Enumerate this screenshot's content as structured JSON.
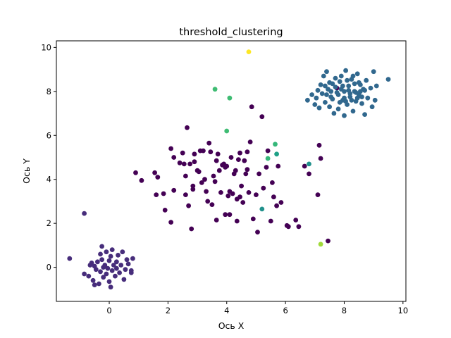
{
  "chart_data": {
    "type": "scatter",
    "title": "threshold_clustering",
    "xlabel": "Ось X",
    "ylabel": "Ось Y",
    "xlim": [
      -1.8,
      10.1
    ],
    "ylim": [
      -1.55,
      10.3
    ],
    "xticks": [
      0,
      2,
      4,
      6,
      8,
      10
    ],
    "yticks": [
      0,
      2,
      4,
      6,
      8,
      10
    ],
    "grid": false,
    "colors": {
      "cluster_a": "#440154",
      "cluster_b": "#472d7b",
      "cluster_c": "#31688e",
      "outlier_teal": "#21918c",
      "outlier_teal2": "#1fa187",
      "outlier_green": "#35b779",
      "outlier_green2": "#3fbc73",
      "outlier_lime": "#a0da39",
      "outlier_yellow": "#fde725"
    },
    "series": [
      {
        "color_key": "cluster_a",
        "points": [
          [
            0.9,
            4.3
          ],
          [
            1.1,
            3.95
          ],
          [
            1.55,
            4.3
          ],
          [
            1.65,
            4.1
          ],
          [
            1.6,
            3.3
          ],
          [
            1.85,
            3.35
          ],
          [
            1.9,
            2.6
          ],
          [
            2.1,
            5.4
          ],
          [
            2.2,
            3.5
          ],
          [
            2.1,
            2.05
          ],
          [
            2.2,
            5.0
          ],
          [
            2.4,
            4.75
          ],
          [
            2.5,
            5.2
          ],
          [
            2.55,
            4.7
          ],
          [
            2.6,
            4.15
          ],
          [
            2.6,
            3.3
          ],
          [
            2.65,
            6.35
          ],
          [
            2.7,
            2.8
          ],
          [
            2.75,
            4.7
          ],
          [
            2.8,
            1.75
          ],
          [
            2.85,
            3.7
          ],
          [
            2.85,
            3.55
          ],
          [
            2.9,
            4.8
          ],
          [
            2.9,
            5.15
          ],
          [
            3.0,
            4.4
          ],
          [
            3.05,
            4.35
          ],
          [
            3.1,
            5.3
          ],
          [
            3.15,
            3.85
          ],
          [
            3.2,
            5.3
          ],
          [
            3.25,
            4.0
          ],
          [
            3.3,
            3.45
          ],
          [
            3.35,
            3.0
          ],
          [
            3.4,
            5.65
          ],
          [
            3.45,
            5.25
          ],
          [
            3.5,
            2.85
          ],
          [
            3.55,
            4.15
          ],
          [
            3.6,
            3.9
          ],
          [
            3.65,
            4.85
          ],
          [
            3.65,
            2.15
          ],
          [
            3.7,
            5.15
          ],
          [
            3.75,
            4.4
          ],
          [
            3.8,
            3.4
          ],
          [
            3.85,
            4.65
          ],
          [
            3.9,
            4.7
          ],
          [
            3.95,
            4.55
          ],
          [
            3.95,
            2.4
          ],
          [
            4.0,
            4.6
          ],
          [
            4.05,
            3.25
          ],
          [
            4.1,
            3.45
          ],
          [
            4.1,
            2.4
          ],
          [
            4.15,
            5.0
          ],
          [
            4.2,
            3.35
          ],
          [
            4.25,
            4.25
          ],
          [
            4.3,
            4.4
          ],
          [
            4.35,
            3.1
          ],
          [
            4.35,
            2.1
          ],
          [
            4.4,
            4.9
          ],
          [
            4.45,
            3.2
          ],
          [
            4.45,
            5.2
          ],
          [
            4.5,
            3.7
          ],
          [
            4.55,
            2.95
          ],
          [
            4.6,
            4.85
          ],
          [
            4.65,
            4.25
          ],
          [
            4.7,
            5.25
          ],
          [
            4.7,
            4.45
          ],
          [
            4.75,
            3.4
          ],
          [
            4.8,
            5.7
          ],
          [
            4.85,
            7.3
          ],
          [
            4.9,
            2.2
          ],
          [
            5.0,
            3.3
          ],
          [
            5.05,
            1.6
          ],
          [
            5.1,
            4.25
          ],
          [
            5.2,
            6.85
          ],
          [
            5.25,
            3.6
          ],
          [
            5.35,
            4.55
          ],
          [
            5.4,
            5.3
          ],
          [
            5.5,
            2.1
          ],
          [
            5.55,
            3.85
          ],
          [
            5.6,
            3.2
          ],
          [
            5.7,
            2.8
          ],
          [
            5.75,
            4.6
          ],
          [
            5.85,
            2.95
          ],
          [
            6.05,
            1.9
          ],
          [
            6.1,
            1.85
          ],
          [
            6.35,
            2.15
          ],
          [
            6.45,
            1.85
          ],
          [
            6.65,
            4.6
          ],
          [
            6.8,
            4.25
          ],
          [
            7.15,
            5.55
          ],
          [
            7.2,
            4.95
          ],
          [
            7.45,
            1.2
          ],
          [
            7.75,
            8.15
          ],
          [
            7.1,
            3.3
          ]
        ]
      },
      {
        "color_key": "cluster_b",
        "points": [
          [
            -0.85,
            2.45
          ],
          [
            -1.35,
            0.4
          ],
          [
            -0.85,
            -0.3
          ],
          [
            -0.7,
            -0.4
          ],
          [
            -0.65,
            0.1
          ],
          [
            -0.6,
            0.2
          ],
          [
            -0.55,
            -0.6
          ],
          [
            -0.5,
            -0.8
          ],
          [
            -0.45,
            -0.1
          ],
          [
            -0.4,
            0.25
          ],
          [
            -0.35,
            -0.75
          ],
          [
            -0.3,
            -0.2
          ],
          [
            -0.3,
            0.6
          ],
          [
            -0.25,
            0.35
          ],
          [
            -0.2,
            0.0
          ],
          [
            -0.2,
            -0.45
          ],
          [
            -0.15,
            0.1
          ],
          [
            -0.1,
            -0.3
          ],
          [
            -0.1,
            0.7
          ],
          [
            -0.05,
            -0.05
          ],
          [
            0.0,
            0.3
          ],
          [
            0.0,
            -0.65
          ],
          [
            0.05,
            0.5
          ],
          [
            0.1,
            -0.15
          ],
          [
            0.1,
            0.8
          ],
          [
            0.15,
            0.1
          ],
          [
            0.2,
            -0.4
          ],
          [
            0.25,
            0.25
          ],
          [
            0.25,
            -0.05
          ],
          [
            0.3,
            0.55
          ],
          [
            0.35,
            -0.25
          ],
          [
            0.4,
            0.1
          ],
          [
            0.45,
            0.7
          ],
          [
            0.5,
            -0.55
          ],
          [
            0.55,
            -0.1
          ],
          [
            0.6,
            0.35
          ],
          [
            0.65,
            0.15
          ],
          [
            0.75,
            -0.25
          ],
          [
            0.75,
            -0.15
          ],
          [
            0.8,
            0.4
          ],
          [
            -0.25,
            0.95
          ],
          [
            0.05,
            -0.9
          ],
          [
            -0.5,
            0.05
          ]
        ]
      },
      {
        "color_key": "cluster_c",
        "points": [
          [
            6.75,
            7.6
          ],
          [
            6.9,
            7.85
          ],
          [
            7.0,
            7.4
          ],
          [
            7.05,
            7.7
          ],
          [
            7.1,
            8.05
          ],
          [
            7.15,
            7.25
          ],
          [
            7.2,
            8.3
          ],
          [
            7.25,
            7.9
          ],
          [
            7.3,
            8.7
          ],
          [
            7.35,
            7.5
          ],
          [
            7.4,
            8.9
          ],
          [
            7.45,
            8.1
          ],
          [
            7.5,
            7.3
          ],
          [
            7.55,
            7.75
          ],
          [
            7.6,
            8.35
          ],
          [
            7.65,
            7.0
          ],
          [
            7.7,
            8.6
          ],
          [
            7.75,
            7.95
          ],
          [
            7.8,
            7.2
          ],
          [
            7.85,
            8.45
          ],
          [
            7.9,
            8.7
          ],
          [
            7.95,
            7.6
          ],
          [
            8.0,
            8.0
          ],
          [
            8.0,
            6.9
          ],
          [
            8.05,
            8.95
          ],
          [
            8.1,
            7.4
          ],
          [
            8.15,
            8.25
          ],
          [
            8.2,
            7.75
          ],
          [
            8.25,
            8.55
          ],
          [
            8.3,
            7.1
          ],
          [
            8.35,
            8.0
          ],
          [
            8.4,
            7.55
          ],
          [
            8.45,
            8.8
          ],
          [
            8.5,
            7.85
          ],
          [
            8.55,
            8.3
          ],
          [
            8.6,
            7.45
          ],
          [
            8.65,
            8.1
          ],
          [
            8.7,
            6.95
          ],
          [
            8.75,
            8.5
          ],
          [
            8.8,
            7.7
          ],
          [
            8.9,
            8.15
          ],
          [
            8.95,
            7.3
          ],
          [
            9.0,
            8.9
          ],
          [
            9.05,
            7.6
          ],
          [
            9.1,
            8.25
          ],
          [
            9.5,
            8.55
          ],
          [
            7.35,
            8.25
          ],
          [
            7.5,
            8.4
          ],
          [
            7.6,
            7.65
          ],
          [
            7.7,
            8.2
          ],
          [
            7.85,
            7.5
          ],
          [
            7.95,
            8.25
          ],
          [
            8.05,
            7.55
          ],
          [
            8.1,
            8.5
          ],
          [
            8.2,
            7.9
          ],
          [
            8.3,
            8.7
          ],
          [
            8.4,
            7.95
          ],
          [
            8.5,
            8.4
          ],
          [
            8.6,
            7.75
          ],
          [
            8.7,
            8.05
          ],
          [
            7.4,
            7.85
          ],
          [
            7.55,
            8.0
          ],
          [
            7.8,
            7.85
          ],
          [
            7.9,
            8.1
          ],
          [
            8.0,
            7.7
          ],
          [
            8.15,
            8.05
          ],
          [
            8.25,
            7.6
          ],
          [
            8.35,
            8.35
          ],
          [
            8.45,
            7.7
          ],
          [
            8.55,
            8.0
          ]
        ]
      },
      {
        "color_key": "outlier_teal",
        "points": [
          [
            5.2,
            2.65
          ],
          [
            6.8,
            4.7
          ]
        ]
      },
      {
        "color_key": "outlier_teal2",
        "points": [
          [
            5.7,
            5.15
          ]
        ]
      },
      {
        "color_key": "outlier_green",
        "points": [
          [
            5.65,
            5.6
          ],
          [
            5.4,
            4.95
          ]
        ]
      },
      {
        "color_key": "outlier_green2",
        "points": [
          [
            3.6,
            8.1
          ],
          [
            4.1,
            7.7
          ],
          [
            4.0,
            6.2
          ]
        ]
      },
      {
        "color_key": "outlier_lime",
        "points": [
          [
            7.2,
            1.05
          ]
        ]
      },
      {
        "color_key": "outlier_yellow",
        "points": [
          [
            4.75,
            9.8
          ]
        ]
      }
    ]
  }
}
